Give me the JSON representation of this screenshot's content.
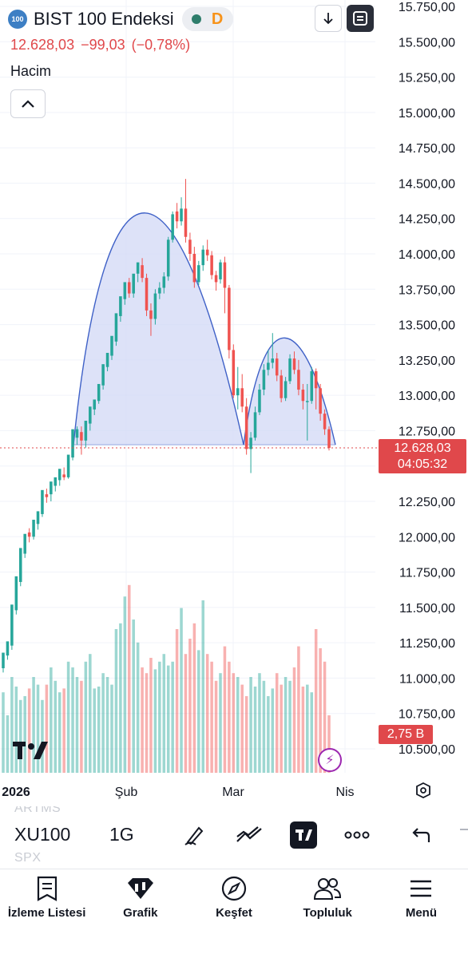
{
  "header": {
    "symbol_badge": "100",
    "title": "BIST 100 Endeksi",
    "status_letter": "D",
    "last_price": "12.628,03",
    "change": "−99,03",
    "change_pct": "(−0,78%)",
    "volume_label": "Hacim"
  },
  "price_tag": {
    "price": "12.628,03",
    "countdown": "04:05:32"
  },
  "volume_tag": "2,75 B",
  "colors": {
    "up": "#26a69a",
    "down": "#ef5350",
    "pattern_fill": "#d5dbf6",
    "pattern_line": "#3f61c7",
    "price_line": "#e0484b"
  },
  "toolbar": {
    "ghost_above": "ARTMS",
    "symbol": "XU100",
    "interval": "1G",
    "ghost_below": "SPX",
    "tools": [
      "pen-icon",
      "line-tool-icon",
      "tradingview-icon",
      "more-icon",
      "undo-icon"
    ]
  },
  "nav": [
    {
      "label": "İzleme Listesi",
      "icon": "watchlist-icon"
    },
    {
      "label": "Grafik",
      "icon": "chart-icon"
    },
    {
      "label": "Keşfet",
      "icon": "compass-icon"
    },
    {
      "label": "Topluluk",
      "icon": "community-icon"
    },
    {
      "label": "Menü",
      "icon": "menu-icon"
    }
  ],
  "chart_data": {
    "type": "candlestick",
    "title": "BIST 100 Endeksi",
    "y_ticks": [
      "15.750,00",
      "15.500,00",
      "15.250,00",
      "15.000,00",
      "14.750,00",
      "14.500,00",
      "14.250,00",
      "14.000,00",
      "13.750,00",
      "13.500,00",
      "13.250,00",
      "13.000,00",
      "12.750,00",
      "12.500,00",
      "12.250,00",
      "12.000,00",
      "11.750,00",
      "11.500,00",
      "11.250,00",
      "11.000,00",
      "10.750,00",
      "10.500,00"
    ],
    "x_ticks": [
      "2026",
      "Şub",
      "Mar",
      "Nis"
    ],
    "ylim": [
      10450,
      15800
    ],
    "last_price": 12628.03,
    "candles": [
      [
        11070,
        11180,
        11040,
        11150
      ],
      [
        11160,
        11260,
        11130,
        11230
      ],
      [
        11230,
        11520,
        11200,
        11480
      ],
      [
        11480,
        11720,
        11450,
        11680
      ],
      [
        11680,
        11920,
        11650,
        11880
      ],
      [
        11880,
        12020,
        11850,
        12000
      ],
      [
        12030,
        12000,
        11960,
        12060
      ],
      [
        12000,
        12120,
        11980,
        12090
      ],
      [
        12090,
        12180,
        12050,
        12160
      ],
      [
        12160,
        12330,
        12140,
        12300
      ],
      [
        12300,
        12280,
        12240,
        12340
      ],
      [
        12300,
        12390,
        12250,
        12360
      ],
      [
        12360,
        12420,
        12320,
        12400
      ],
      [
        12400,
        12480,
        12360,
        12450
      ],
      [
        12440,
        12420,
        12400,
        12490
      ],
      [
        12420,
        12580,
        12410,
        12560
      ],
      [
        12560,
        12760,
        12540,
        12740
      ],
      [
        12700,
        12760,
        12650,
        12780
      ],
      [
        12740,
        12680,
        12580,
        12780
      ],
      [
        12680,
        12820,
        12630,
        12800
      ],
      [
        12800,
        12920,
        12750,
        12900
      ],
      [
        12900,
        12970,
        12860,
        12950
      ],
      [
        12960,
        13080,
        12940,
        13070
      ],
      [
        13070,
        13220,
        13040,
        13200
      ],
      [
        13200,
        13300,
        13170,
        13280
      ],
      [
        13280,
        13420,
        13250,
        13380
      ],
      [
        13380,
        13580,
        13350,
        13560
      ],
      [
        13560,
        13700,
        13520,
        13680
      ],
      [
        13680,
        13800,
        13640,
        13780
      ],
      [
        13800,
        13720,
        13690,
        13830
      ],
      [
        13720,
        13860,
        13690,
        13840
      ],
      [
        13860,
        13940,
        13800,
        13920
      ],
      [
        13920,
        13830,
        13800,
        13970
      ],
      [
        13830,
        13600,
        13560,
        13860
      ],
      [
        13600,
        13540,
        13420,
        13650
      ],
      [
        13540,
        13720,
        13500,
        13750
      ],
      [
        13720,
        13760,
        13680,
        13800
      ],
      [
        13760,
        13840,
        13720,
        13870
      ],
      [
        13840,
        14100,
        13810,
        14120
      ],
      [
        14100,
        14280,
        14080,
        14300
      ],
      [
        14300,
        14230,
        14180,
        14360
      ],
      [
        14230,
        14320,
        14200,
        14400
      ],
      [
        14320,
        14120,
        14080,
        14530
      ],
      [
        14100,
        14000,
        13950,
        14150
      ],
      [
        14000,
        13800,
        13760,
        14050
      ],
      [
        13800,
        13920,
        13780,
        13950
      ],
      [
        13920,
        14030,
        13880,
        14060
      ],
      [
        14030,
        13990,
        13950,
        14100
      ],
      [
        13990,
        13850,
        13820,
        14020
      ],
      [
        13850,
        13800,
        13740,
        13880
      ],
      [
        13820,
        13940,
        13790,
        13960
      ],
      [
        13940,
        13760,
        13580,
        13980
      ],
      [
        13760,
        13320,
        13260,
        13780
      ],
      [
        13320,
        13000,
        12980,
        13360
      ],
      [
        13000,
        13050,
        12900,
        13200
      ],
      [
        13050,
        12920,
        12880,
        13150
      ],
      [
        12920,
        12620,
        12580,
        12980
      ],
      [
        12620,
        12700,
        12450,
        12740
      ],
      [
        12700,
        12880,
        12680,
        12920
      ],
      [
        12880,
        13040,
        12860,
        13080
      ],
      [
        13040,
        13180,
        13000,
        13220
      ],
      [
        13180,
        13230,
        13140,
        13320
      ],
      [
        13230,
        13260,
        13190,
        13440
      ],
      [
        13260,
        13140,
        13100,
        13300
      ],
      [
        13140,
        12980,
        12950,
        13180
      ],
      [
        12980,
        13100,
        12960,
        13130
      ],
      [
        13100,
        13260,
        13080,
        13290
      ],
      [
        13260,
        13180,
        13150,
        13310
      ],
      [
        13180,
        13040,
        13000,
        13250
      ],
      [
        13040,
        12960,
        12900,
        13080
      ],
      [
        12960,
        12960,
        12680,
        13080
      ],
      [
        12960,
        13170,
        12940,
        13200
      ],
      [
        13170,
        13050,
        12900,
        13190
      ],
      [
        13050,
        12870,
        12820,
        13080
      ],
      [
        12870,
        12760,
        12720,
        12900
      ],
      [
        12760,
        12628,
        12610,
        12780
      ]
    ],
    "volume_bars_relative": [
      0.42,
      0.3,
      0.5,
      0.45,
      0.38,
      0.4,
      0.44,
      0.5,
      0.46,
      0.38,
      0.46,
      0.55,
      0.48,
      0.42,
      0.44,
      0.58,
      0.55,
      0.5,
      0.48,
      0.58,
      0.62,
      0.44,
      0.45,
      0.52,
      0.5,
      0.46,
      0.75,
      0.78,
      0.92,
      0.98,
      0.8,
      0.68,
      0.55,
      0.52,
      0.6,
      0.54,
      0.58,
      0.62,
      0.56,
      0.58,
      0.75,
      0.86,
      0.62,
      0.7,
      0.78,
      0.64,
      0.9,
      0.62,
      0.58,
      0.48,
      0.52,
      0.66,
      0.58,
      0.52,
      0.5,
      0.46,
      0.4,
      0.5,
      0.45,
      0.52,
      0.48,
      0.4,
      0.44,
      0.52,
      0.46,
      0.5,
      0.48,
      0.55,
      0.66,
      0.45,
      0.46,
      0.42,
      0.75,
      0.65,
      0.58,
      0.3
    ],
    "pattern": {
      "label": "cup pattern (double arc) with neckline",
      "neckline": 12650,
      "arc1_peak": 14130,
      "arc2_peak": 13290
    },
    "grid": true
  }
}
